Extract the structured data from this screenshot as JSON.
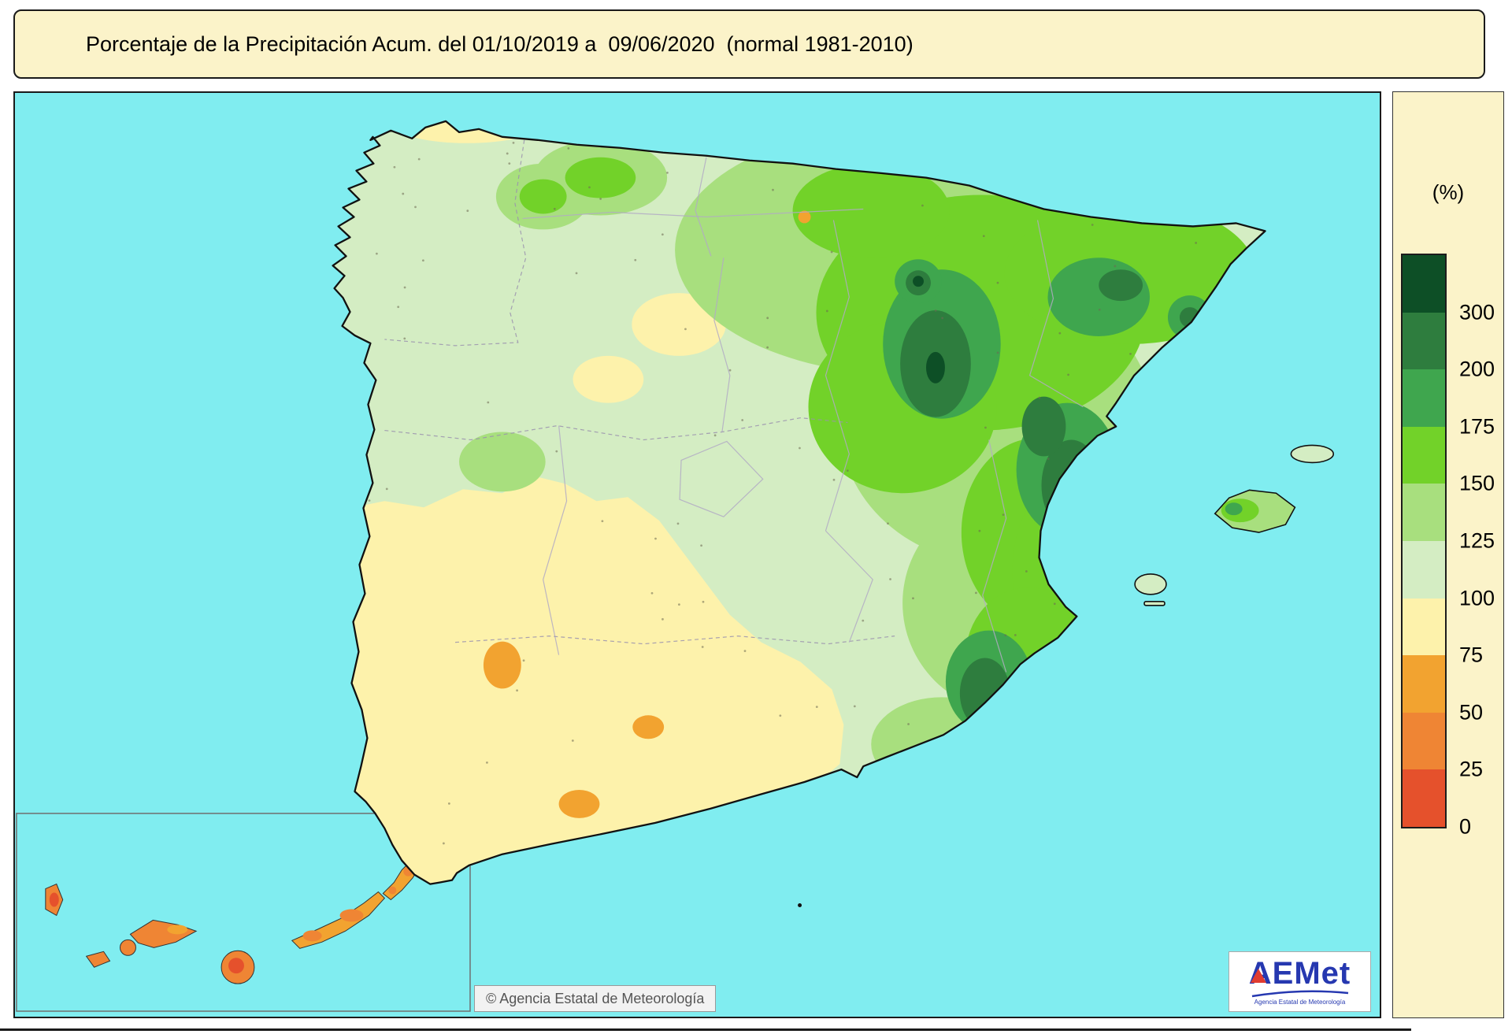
{
  "title_bar": {
    "text": "Porcentaje de la Precipitación Acum. del 01/10/2019 a  09/06/2020  (normal 1981-2010)"
  },
  "map": {
    "attribution": "© Agencia Estatal de Meteorología",
    "logo": {
      "text": "AEMet",
      "subtitle": "Agencia Estatal de Meteorología"
    }
  },
  "colors": {
    "sea": "#80edf0",
    "cream": "#fbf3c9"
  },
  "legend": {
    "unit_label": "(%)",
    "segments": [
      {
        "color": "#0d4f26",
        "tick": "300"
      },
      {
        "color": "#2e7d3e",
        "tick": "200"
      },
      {
        "color": "#3fa64e",
        "tick": "175"
      },
      {
        "color": "#72d229",
        "tick": "150"
      },
      {
        "color": "#a8df7e",
        "tick": "125"
      },
      {
        "color": "#d4edc3",
        "tick": "100"
      },
      {
        "color": "#fdf2ab",
        "tick": "75"
      },
      {
        "color": "#f2a330",
        "tick": "50"
      },
      {
        "color": "#ef8534",
        "tick": "25"
      },
      {
        "color": "#e5512c",
        "tick": "0"
      }
    ]
  }
}
